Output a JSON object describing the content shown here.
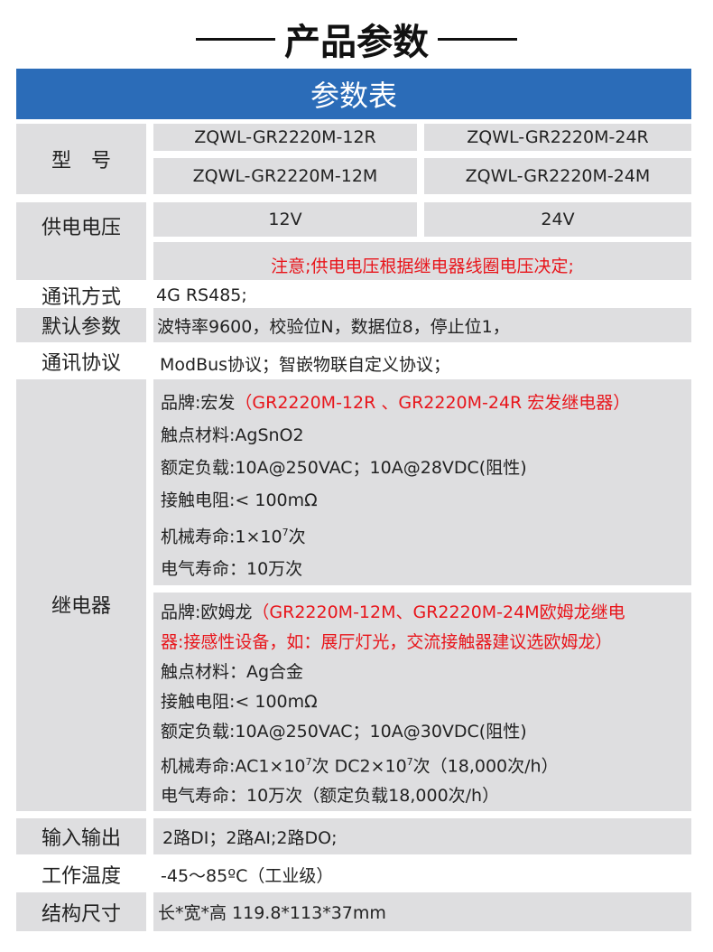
{
  "title": "产品参数",
  "table_header": "参数表",
  "model": {
    "label": "型　号",
    "items": [
      "ZQWL-GR2220M-12R",
      "ZQWL-GR2220M-24R",
      "ZQWL-GR2220M-12M",
      "ZQWL-GR2220M-24M"
    ]
  },
  "voltage": {
    "label": "供电电压",
    "v12": "12V",
    "v24": "24V",
    "note": "注意;供电电压根据继电器线圈电压决定;"
  },
  "comm_mode": {
    "label": "通讯方式",
    "value": "4G  RS485;"
  },
  "defaults": {
    "label": "默认参数",
    "value": "波特率9600，校验位N，数据位8，停止位1，"
  },
  "protocol": {
    "label": "通讯协议",
    "value": "ModBus协议；智嵌物联自定义协议；"
  },
  "relay": {
    "label": "继电器",
    "a": {
      "brand": "品牌:宏发",
      "brand_note": "（GR2220M-12R 、GR2220M-24R 宏发继电器）",
      "material": "触点材料:AgSnO2",
      "load": "额定负载:10A@250VAC；10A@28VDC(阻性)",
      "resistance": "接触电阻:< 100mΩ",
      "mech": "机械寿命:1×10",
      "mech_exp": "7",
      "mech_suffix": "次",
      "elec": "电气寿命：10万次"
    },
    "b": {
      "brand": "品牌:欧姆龙",
      "brand_note1": "（GR2220M-12M、GR2220M-24M欧姆龙继电",
      "brand_note2": "器:接感性设备，如：展厅灯光，交流接触器建议选欧姆龙）",
      "material": "触点材料：Ag合金",
      "resistance": "接触电阻:< 100mΩ",
      "load": "额定负载:10A@250VAC；10A@30VDC(阻性)",
      "mech1": "机械寿命:AC1×10",
      "mech_exp1": "7",
      "mech2": "次 DC2×10",
      "mech_exp2": "7",
      "mech3": "次（18,000次/h）",
      "elec": "电气寿命：10万次（额定负载18,000次/h）"
    }
  },
  "io": {
    "label": "输入输出",
    "value": "2路DI；2路AI;2路DO;"
  },
  "temp": {
    "label": "工作温度",
    "value": "-45～85ºC（工业级）"
  },
  "size": {
    "label": "结构尺寸",
    "value": "长*宽*高  119.8*113*37mm"
  }
}
